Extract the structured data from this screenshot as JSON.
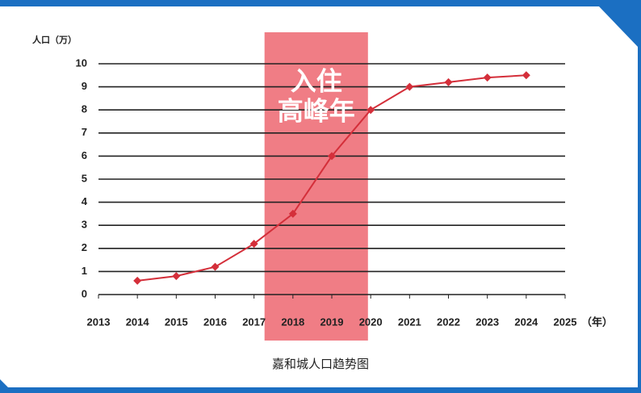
{
  "chart_data": {
    "type": "line",
    "ylabel": "人口（万）",
    "xlabel": "（年）",
    "caption": "嘉和城人口趋势图",
    "x": [
      2014,
      2015,
      2016,
      2017,
      2018,
      2019,
      2020,
      2021,
      2022,
      2023,
      2024
    ],
    "values": [
      0.6,
      0.8,
      1.2,
      2.2,
      3.5,
      6,
      8,
      9,
      9.2,
      9.4,
      9.5
    ],
    "color": "#d42f3a",
    "xlim": [
      2013,
      2025
    ],
    "xticks": [
      2013,
      2014,
      2015,
      2016,
      2017,
      2018,
      2019,
      2020,
      2021,
      2022,
      2023,
      2024,
      2025
    ],
    "ylim": [
      0,
      10
    ],
    "yticks": [
      0,
      1,
      2,
      3,
      4,
      5,
      6,
      7,
      8,
      9,
      10
    ],
    "grid": true,
    "highlight": {
      "xlim": [
        2017.27,
        2019.93
      ],
      "color": "#f07d85",
      "lines": [
        "入住",
        "高峰年"
      ]
    }
  }
}
